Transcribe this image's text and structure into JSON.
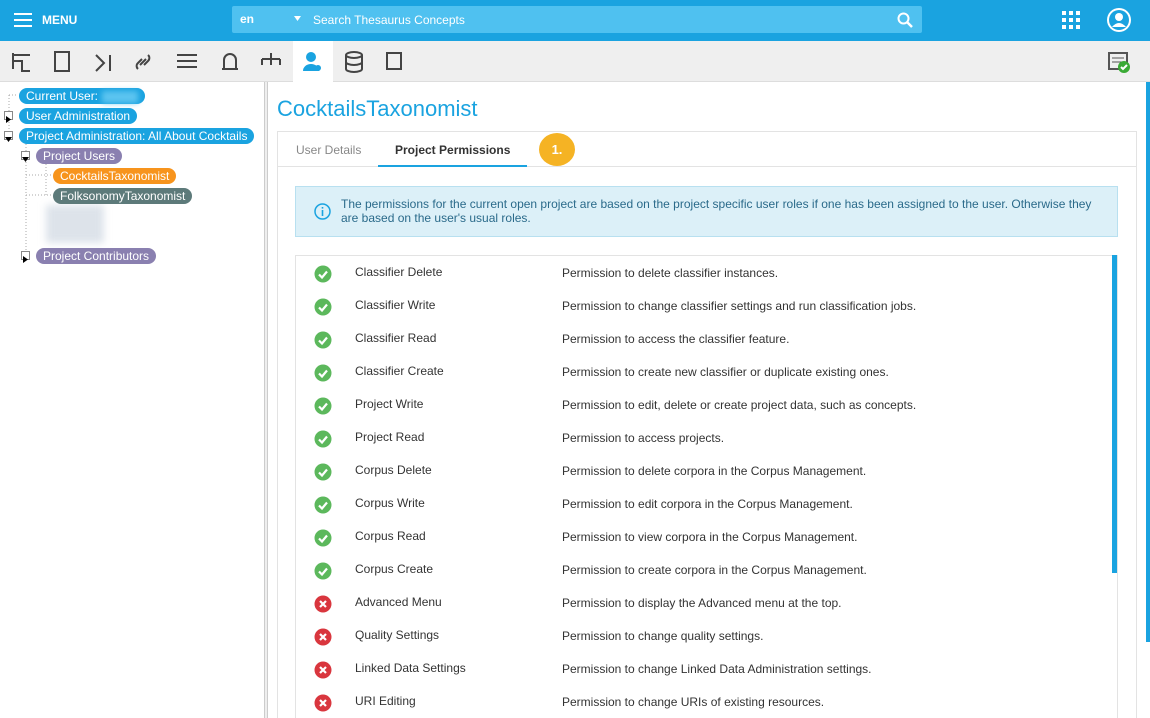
{
  "header": {
    "menu": "MENU",
    "language": "en",
    "search_placeholder": "Search Thesaurus Concepts"
  },
  "tree": [
    {
      "label": "Current User:",
      "color": "#1aa3e0",
      "level": 0,
      "expander": "none"
    },
    {
      "label": "User Administration",
      "color": "#1aa3e0",
      "level": 0,
      "expander": "collapsed"
    },
    {
      "label": "Project Administration: All About Cocktails",
      "color": "#1aa3e0",
      "level": 0,
      "expander": "expanded"
    },
    {
      "label": "Project Users",
      "color": "#8a80b0",
      "level": 1,
      "expander": "expanded"
    },
    {
      "label": "CocktailsTaxonomist",
      "color": "#f7941d",
      "level": 2,
      "expander": "none"
    },
    {
      "label": "FolksonomyTaxonomist",
      "color": "#5d7a7a",
      "level": 2,
      "expander": "none"
    },
    {
      "label": "Project Contributors",
      "color": "#8a80b0",
      "level": 1,
      "expander": "collapsed"
    }
  ],
  "main": {
    "title": "CocktailsTaxonomist",
    "tabs": [
      "User Details",
      "Project Permissions"
    ],
    "active_tab": 1,
    "badge": "1.",
    "info": "The permissions for the current open project are based on the project specific user roles if one has been assigned to the user. Otherwise they are based on the user's usual roles.",
    "permissions": [
      {
        "name": "Classifier Delete",
        "description": "Permission to delete classifier instances.",
        "granted": true
      },
      {
        "name": "Classifier Write",
        "description": "Permission to change classifier settings and run classification jobs.",
        "granted": true
      },
      {
        "name": "Classifier Read",
        "description": "Permission to access the classifier feature.",
        "granted": true
      },
      {
        "name": "Classifier Create",
        "description": "Permission to create new classifier or duplicate existing ones.",
        "granted": true
      },
      {
        "name": "Project Write",
        "description": "Permission to edit, delete or create project data, such as concepts.",
        "granted": true
      },
      {
        "name": "Project Read",
        "description": "Permission to access projects.",
        "granted": true
      },
      {
        "name": "Corpus Delete",
        "description": "Permission to delete corpora in the Corpus Management.",
        "granted": true
      },
      {
        "name": "Corpus Write",
        "description": "Permission to edit corpora in the Corpus Management.",
        "granted": true
      },
      {
        "name": "Corpus Read",
        "description": "Permission to view corpora in the Corpus Management.",
        "granted": true
      },
      {
        "name": "Corpus Create",
        "description": "Permission to create corpora in the Corpus Management.",
        "granted": true
      },
      {
        "name": "Advanced Menu",
        "description": "Permission to display the Advanced menu at the top.",
        "granted": false
      },
      {
        "name": "Quality Settings",
        "description": "Permission to change quality settings.",
        "granted": false
      },
      {
        "name": "Linked Data Settings",
        "description": "Permission to change Linked Data Administration settings.",
        "granted": false
      },
      {
        "name": "URI Editing",
        "description": "Permission to change URIs of existing resources.",
        "granted": false
      }
    ]
  }
}
